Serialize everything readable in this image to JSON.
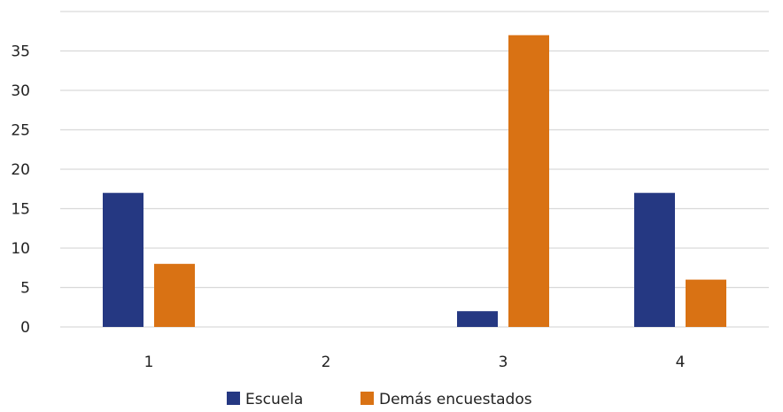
{
  "chart_data": {
    "type": "bar",
    "categories": [
      "1",
      "2",
      "3",
      "4"
    ],
    "series": [
      {
        "name": "Escuela",
        "color": "#253882",
        "values": [
          17,
          0,
          2,
          17
        ]
      },
      {
        "name": "Demás encuestados",
        "color": "#D97214",
        "values": [
          8,
          0,
          37,
          6
        ]
      }
    ],
    "title": "",
    "xlabel": "",
    "ylabel": "",
    "ylim": [
      0,
      40
    ],
    "yticks": [
      "0",
      "5",
      "10",
      "15",
      "20",
      "25",
      "30",
      "35"
    ],
    "grid": true,
    "gridline_color": "#D9D9D9",
    "legend_position": "bottom"
  }
}
